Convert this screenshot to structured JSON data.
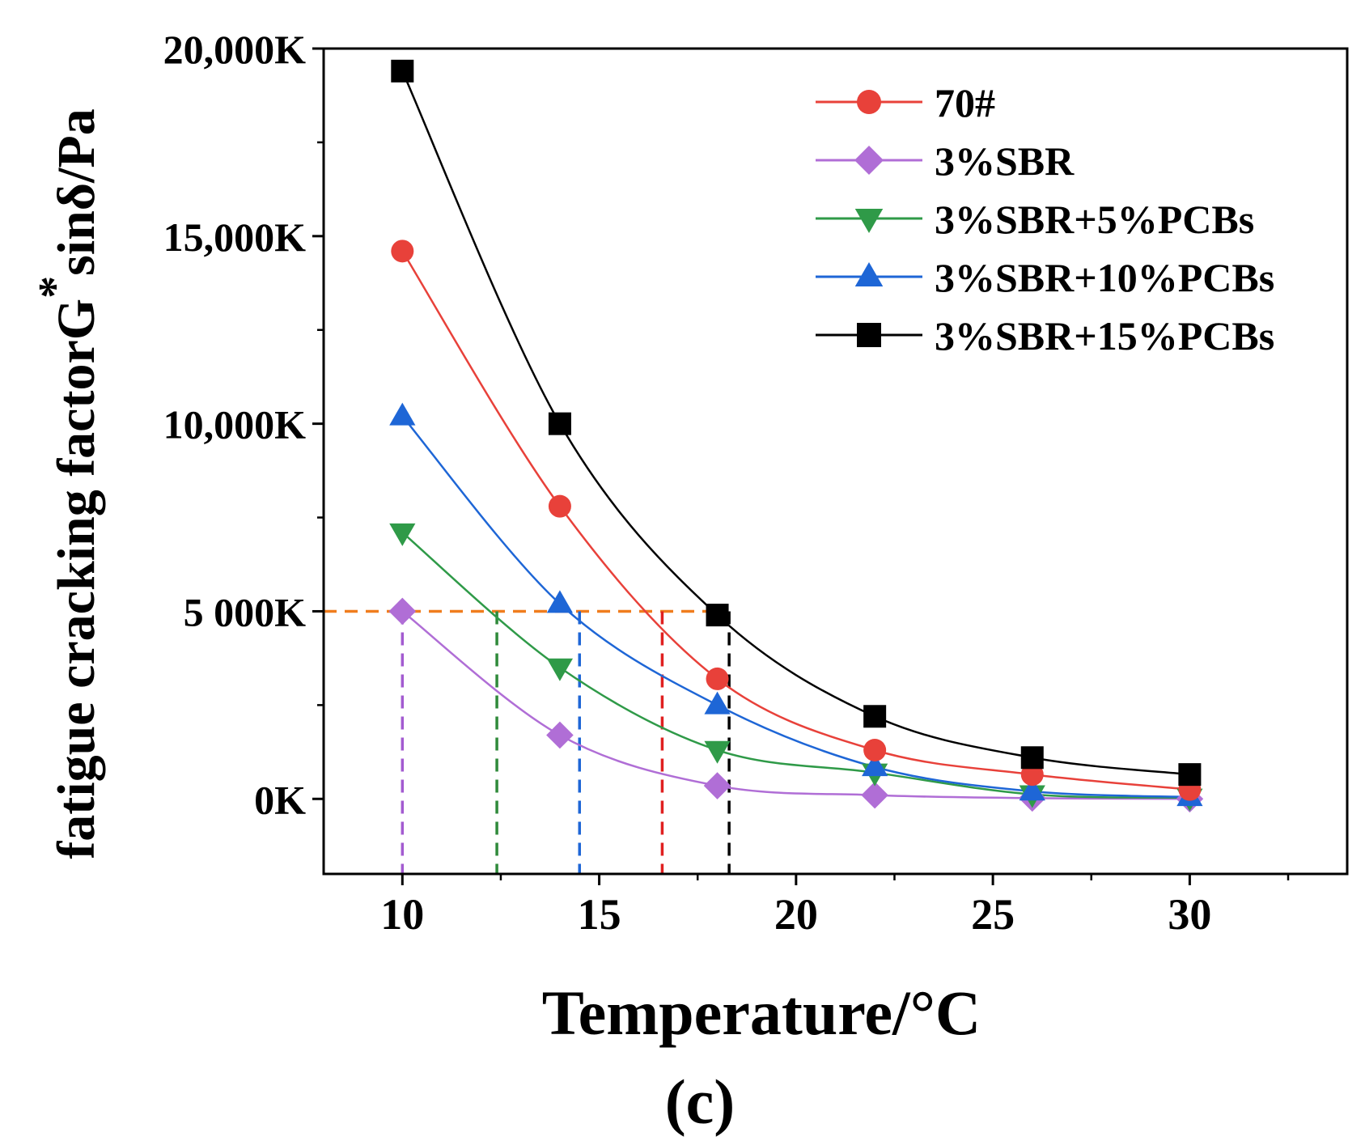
{
  "chart_data": {
    "type": "line",
    "title": "",
    "xlabel": "Temperature/°C",
    "ylabel_main": "fatigue cracking factorG",
    "ylabel_sup": "*",
    "ylabel_tail": "sinδ/Pa",
    "panel_label": "(c)",
    "xlim": [
      8,
      34
    ],
    "ylim": [
      -2000,
      20000
    ],
    "x_ticks": [
      10,
      15,
      20,
      25,
      30
    ],
    "x_tick_labels": [
      "10",
      "15",
      "20",
      "25",
      "30"
    ],
    "y_ticks": [
      0,
      5000,
      10000,
      15000,
      20000
    ],
    "y_tick_labels": [
      "0K",
      "5 000K",
      "10,000K",
      "15,000K",
      "20,000K"
    ],
    "legend_position": "top-right",
    "x": [
      10,
      14,
      18,
      22,
      26,
      30
    ],
    "series": [
      {
        "name": "70#",
        "color": "#e8413a",
        "marker": "circle",
        "values": [
          14600,
          7800,
          3200,
          1300,
          650,
          250
        ]
      },
      {
        "name": "3%SBR",
        "color": "#b06ed6",
        "marker": "diamond",
        "values": [
          5000,
          1700,
          350,
          100,
          20,
          0
        ]
      },
      {
        "name": "3%SBR+5%PCBs",
        "color": "#2f9a48",
        "marker": "triangle-down",
        "values": [
          7100,
          3500,
          1300,
          700,
          120,
          30
        ]
      },
      {
        "name": "3%SBR+10%PCBs",
        "color": "#1e66d6",
        "marker": "triangle-up",
        "values": [
          10200,
          5200,
          2500,
          850,
          200,
          50
        ]
      },
      {
        "name": "3%SBR+15%PCBs",
        "color": "#000000",
        "marker": "square",
        "values": [
          19400,
          10000,
          4900,
          2200,
          1100,
          650
        ]
      }
    ],
    "reference_line": {
      "y": 5000,
      "color": "#f07d1e",
      "x_end": 18.2
    },
    "intersections": [
      {
        "series": "3%SBR",
        "x": 10,
        "color": "#a35bd0"
      },
      {
        "series": "3%SBR+5%PCBs",
        "x": 12.4,
        "color": "#2f8a3a"
      },
      {
        "series": "3%SBR+10%PCBs",
        "x": 14.5,
        "color": "#1e66d6"
      },
      {
        "series": "70#",
        "x": 16.6,
        "color": "#e02020"
      },
      {
        "series": "3%SBR+15%PCBs",
        "x": 18.3,
        "color": "#000000"
      }
    ]
  }
}
